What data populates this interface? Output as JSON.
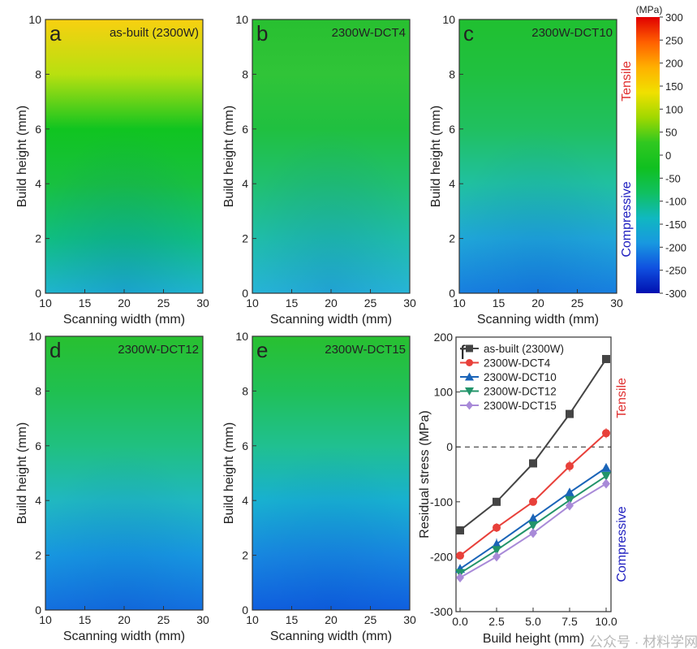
{
  "heatmaps": [
    {
      "letter": "a",
      "label": "as-built (2300W)",
      "stops": [
        "#f8d010",
        "#b8e010",
        "#10c420",
        "#18c040",
        "#10c080",
        "#20b8d0"
      ]
    },
    {
      "letter": "b",
      "label": "2300W-DCT4",
      "stops": [
        "#28c030",
        "#30c438",
        "#20c040",
        "#20c070",
        "#20c0a8",
        "#28b8d8"
      ]
    },
    {
      "letter": "c",
      "label": "2300W-DCT10",
      "stops": [
        "#20c030",
        "#20c040",
        "#20c060",
        "#20c0a0",
        "#20a8d8",
        "#1880e0"
      ]
    },
    {
      "letter": "d",
      "label": "2300W-DCT12",
      "stops": [
        "#28c030",
        "#20c050",
        "#20c080",
        "#20b8c0",
        "#1898e0",
        "#1470e0"
      ]
    },
    {
      "letter": "e",
      "label": "2300W-DCT15",
      "stops": [
        "#28c030",
        "#20c058",
        "#20c090",
        "#18b0d0",
        "#1888e0",
        "#1060e0"
      ]
    }
  ],
  "heatmap_axes": {
    "xlabel": "Scanning width (mm)",
    "ylabel": "Build height (mm)",
    "xticks": [
      "10",
      "15",
      "20",
      "25",
      "30"
    ],
    "yticks": [
      "0",
      "2",
      "4",
      "6",
      "8",
      "10"
    ]
  },
  "colorbar": {
    "unit": "(MPa)",
    "ticks": [
      "300",
      "250",
      "200",
      "150",
      "100",
      "50",
      "0",
      "-50",
      "-100",
      "-150",
      "-200",
      "-250",
      "-300"
    ],
    "tensile": "Tensile",
    "compressive": "Compressive",
    "colors": [
      "#e00000",
      "#ff6000",
      "#ffb000",
      "#f0e000",
      "#a0d800",
      "#30c820",
      "#10c020",
      "#10c060",
      "#10b8c0",
      "#1898e0",
      "#1050e0",
      "#0010b0"
    ]
  },
  "chart_data": {
    "type": "line",
    "letter": "f",
    "x": [
      0,
      2.5,
      5,
      7.5,
      10
    ],
    "xticks": [
      "0.0",
      "2.5",
      "5.0",
      "7.5",
      "10.0"
    ],
    "yticks": [
      "200",
      "100",
      "0",
      "-100",
      "-200",
      "-300"
    ],
    "xlabel": "Build height (mm)",
    "ylabel": "Residual stress (MPa)",
    "xlim": [
      -0.2,
      10.3
    ],
    "ylim": [
      -300,
      200
    ],
    "reference_line": 0,
    "tensile": "Tensile",
    "compressive": "Compressive",
    "legend_position": "top-left",
    "series": [
      {
        "name": "as-built (2300W)",
        "marker": "square",
        "color": "#444444",
        "values": [
          -152,
          -100,
          -30,
          60,
          160
        ],
        "errors": [
          3,
          3,
          3,
          3,
          3
        ]
      },
      {
        "name": "2300W-DCT4",
        "marker": "circle",
        "color": "#e8403a",
        "values": [
          -198,
          -147,
          -100,
          -35,
          25
        ],
        "errors": [
          4,
          8,
          7,
          10,
          9
        ]
      },
      {
        "name": "2300W-DCT10",
        "marker": "triangle-up",
        "color": "#1a64b8",
        "values": [
          -222,
          -177,
          -130,
          -83,
          -38
        ],
        "errors": [
          8,
          10,
          8,
          6,
          6
        ]
      },
      {
        "name": "2300W-DCT12",
        "marker": "triangle-down",
        "color": "#22946a",
        "values": [
          -230,
          -188,
          -143,
          -97,
          -53
        ],
        "errors": [
          5,
          5,
          5,
          5,
          5
        ]
      },
      {
        "name": "2300W-DCT15",
        "marker": "diamond",
        "color": "#a88ad8",
        "values": [
          -238,
          -200,
          -157,
          -107,
          -67
        ],
        "errors": [
          7,
          7,
          6,
          5,
          7
        ]
      }
    ]
  },
  "watermark": "公众号 · 材料学网"
}
